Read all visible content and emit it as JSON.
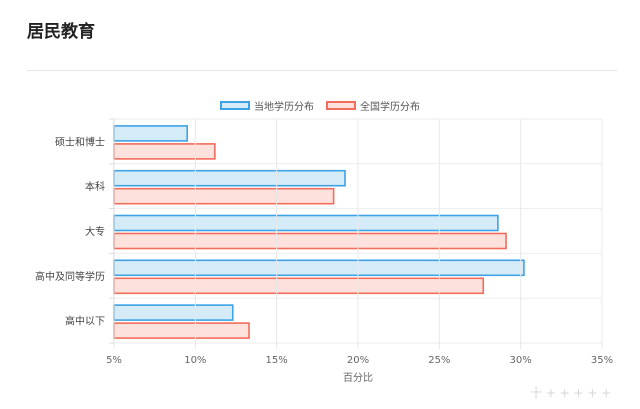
{
  "page": {
    "title": "居民教育",
    "watermark": "十 + + + + +"
  },
  "legend": {
    "items": [
      {
        "label": "当地学历分布",
        "fill": "#d5ecf8",
        "stroke": "#3da2e6"
      },
      {
        "label": "全国学历分布",
        "fill": "#fde1dc",
        "stroke": "#f26d5b"
      }
    ]
  },
  "chart_data": {
    "type": "bar",
    "orientation": "horizontal",
    "categories": [
      "硕士和博士",
      "本科",
      "大专",
      "高中及同等学历",
      "高中以下"
    ],
    "series": [
      {
        "name": "当地学历分布",
        "values": [
          9.5,
          19.2,
          28.6,
          30.2,
          12.3
        ],
        "fill": "#d5ecf8",
        "stroke": "#3da2e6"
      },
      {
        "name": "全国学历分布",
        "values": [
          11.2,
          18.5,
          29.1,
          27.7,
          13.3
        ],
        "fill": "#fde1dc",
        "stroke": "#f26d5b"
      }
    ],
    "xlabel": "百分比",
    "xlim": [
      5,
      35
    ],
    "xticks": [
      "5%",
      "10%",
      "15%",
      "20%",
      "25%",
      "30%",
      "35%"
    ],
    "grid": true,
    "legend_position": "top-center"
  }
}
